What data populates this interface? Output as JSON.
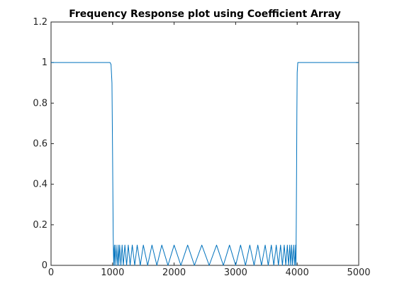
{
  "chart_data": {
    "type": "line",
    "title": "Frequency Response plot using Coefficient Array",
    "xlabel": "",
    "ylabel": "",
    "xlim": [
      0,
      5000
    ],
    "ylim": [
      0,
      1.2
    ],
    "xticks": [
      0,
      1000,
      2000,
      3000,
      4000,
      5000
    ],
    "xtick_labels": [
      "0",
      "1000",
      "2000",
      "3000",
      "4000",
      "5000"
    ],
    "yticks": [
      0,
      0.2,
      0.4,
      0.6,
      0.8,
      1,
      1.2
    ],
    "ytick_labels": [
      "0",
      "0.2",
      "0.4",
      "0.6",
      "0.8",
      "1",
      "1.2"
    ],
    "grid": false,
    "line_color": "#0072BD",
    "series": [
      {
        "x": [
          0,
          150,
          300,
          450,
          600,
          750,
          900,
          960,
          975,
          990,
          1000,
          1005,
          1010,
          1015,
          1020,
          1025,
          1030,
          1040,
          1055,
          1075,
          1090,
          1100,
          1115,
          1135,
          1155,
          1175,
          1200,
          1228,
          1255,
          1285,
          1320,
          1360,
          1400,
          1450,
          1500,
          1570,
          1640,
          1720,
          1800,
          1900,
          2000,
          2110,
          2220,
          2330,
          2450,
          2570,
          2690,
          2800,
          2900,
          3000,
          3080,
          3160,
          3230,
          3300,
          3360,
          3420,
          3480,
          3530,
          3580,
          3620,
          3660,
          3695,
          3730,
          3760,
          3790,
          3815,
          3840,
          3860,
          3880,
          3895,
          3910,
          3925,
          3945,
          3960,
          3970,
          3975,
          3980,
          3985,
          3990,
          3995,
          4000,
          4010,
          4025,
          4040,
          4100,
          4200,
          4400,
          4600,
          4800,
          5000
        ],
        "y": [
          1,
          1,
          1,
          1,
          1,
          1,
          1,
          1,
          0.99,
          0.9,
          0.55,
          0.35,
          0.15,
          0.05,
          0.0,
          0.08,
          0.1,
          0.0,
          0.1,
          0.0,
          0.1,
          0.0,
          0.1,
          0.0,
          0.1,
          0.0,
          0.1,
          0.0,
          0.1,
          0.0,
          0.1,
          0.0,
          0.1,
          0.0,
          0.1,
          0.0,
          0.1,
          0.0,
          0.1,
          0.0,
          0.1,
          0.0,
          0.1,
          0.0,
          0.1,
          0.0,
          0.1,
          0.0,
          0.1,
          0.0,
          0.1,
          0.0,
          0.1,
          0.0,
          0.1,
          0.0,
          0.1,
          0.0,
          0.1,
          0.0,
          0.1,
          0.0,
          0.1,
          0.0,
          0.1,
          0.0,
          0.1,
          0.0,
          0.1,
          0.0,
          0.1,
          0.0,
          0.1,
          0.0,
          0.06,
          0.1,
          0.0,
          0.2,
          0.45,
          0.75,
          0.95,
          1,
          1,
          1,
          1,
          1,
          1,
          1,
          1,
          1
        ]
      }
    ]
  }
}
